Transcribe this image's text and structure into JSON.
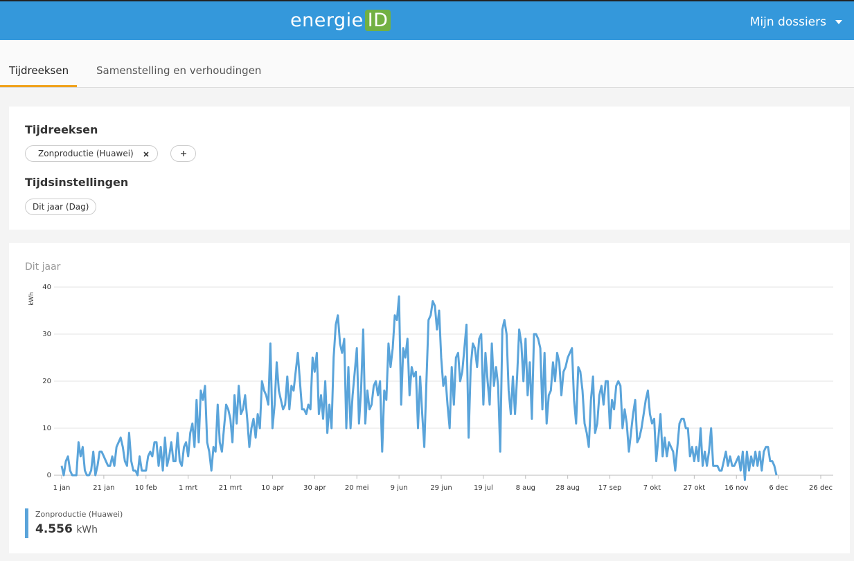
{
  "header": {
    "logo_text": "energie",
    "logo_badge": "ID",
    "menu": "Mijn dossiers"
  },
  "tabs": [
    "Tijdreeksen",
    "Samenstelling en verhoudingen"
  ],
  "series_panel": {
    "title": "Tijdreeksen",
    "chip": "Zonproductie (Huawei)"
  },
  "time_panel": {
    "title": "Tijdsinstellingen",
    "chip": "Dit jaar (Dag)"
  },
  "chart_data": {
    "type": "line",
    "title": "Dit jaar",
    "y_label": "kWh",
    "xlim": [
      0,
      360
    ],
    "xticks": [
      {
        "value": 0,
        "label": "1 jan"
      },
      {
        "value": 20,
        "label": "21 jan"
      },
      {
        "value": 40,
        "label": "10 feb"
      },
      {
        "value": 60,
        "label": "1 mrt"
      },
      {
        "value": 80,
        "label": "21 mrt"
      },
      {
        "value": 100,
        "label": "10 apr"
      },
      {
        "value": 120,
        "label": "30 apr"
      },
      {
        "value": 140,
        "label": "20 mei"
      },
      {
        "value": 160,
        "label": "9 jun"
      },
      {
        "value": 180,
        "label": "29 jun"
      },
      {
        "value": 200,
        "label": "19 jul"
      },
      {
        "value": 220,
        "label": "8 aug"
      },
      {
        "value": 240,
        "label": "28 aug"
      },
      {
        "value": 260,
        "label": "17 sep"
      },
      {
        "value": 280,
        "label": "7 okt"
      },
      {
        "value": 300,
        "label": "27 okt"
      },
      {
        "value": 320,
        "label": "16 nov"
      },
      {
        "value": 340,
        "label": "6 dec"
      },
      {
        "value": 360,
        "label": "26 dec"
      }
    ],
    "ylim": [
      0,
      40
    ],
    "yticks": [
      0,
      10,
      20,
      30,
      40
    ],
    "grid": true,
    "series": [
      {
        "name": "Zonproductie (Huawei)",
        "color": "#5aa4da",
        "values": [
          2,
          0,
          3,
          4,
          1,
          0,
          0,
          0,
          7,
          4,
          6,
          1,
          0,
          0,
          1,
          5,
          0,
          2,
          5,
          5,
          4,
          3,
          2,
          2,
          4,
          2,
          6,
          7,
          8,
          6,
          3,
          2,
          9,
          3,
          1,
          1,
          0,
          4,
          1,
          1,
          1,
          4,
          5,
          4,
          7,
          7,
          2,
          6,
          1,
          8,
          2,
          4,
          7,
          3,
          3,
          9,
          3,
          2,
          6,
          7,
          4,
          9,
          11,
          6,
          16,
          7,
          18,
          16,
          19,
          7,
          5,
          1,
          6,
          5,
          15,
          7,
          5,
          10,
          15,
          14,
          12,
          7,
          17,
          11,
          19,
          13,
          14,
          17,
          12,
          6,
          10,
          12,
          8,
          13,
          10,
          20,
          18,
          17,
          15,
          28,
          10,
          15,
          24,
          18,
          16,
          14,
          15,
          21,
          14,
          19,
          18,
          22,
          26,
          20,
          14,
          14,
          13,
          15,
          14,
          25,
          22,
          26,
          13,
          17,
          12,
          20,
          9,
          15,
          10,
          25,
          32,
          34,
          28,
          26,
          29,
          10,
          23,
          10,
          17,
          22,
          27,
          11,
          18,
          31,
          11,
          18,
          14,
          15,
          19,
          20,
          17,
          20,
          5,
          18,
          16,
          28,
          23,
          27,
          34,
          33,
          38,
          15,
          27,
          25,
          29,
          17,
          23,
          21,
          22,
          10,
          21,
          13,
          6,
          20,
          33,
          34,
          37,
          36,
          31,
          35,
          25,
          19,
          21,
          15,
          10,
          23,
          15,
          25,
          26,
          20,
          22,
          27,
          32,
          8,
          23,
          28,
          27,
          23,
          29,
          30,
          15,
          26,
          20,
          15,
          28,
          19,
          23,
          19,
          5,
          31,
          33,
          30,
          18,
          13,
          21,
          13,
          21,
          31,
          28,
          20,
          29,
          17,
          24,
          12,
          30,
          30,
          29,
          27,
          14,
          26,
          11,
          17,
          18,
          24,
          20,
          26,
          24,
          17,
          22,
          23,
          25,
          26,
          27,
          16,
          11,
          23,
          22,
          18,
          11,
          9,
          6,
          16,
          21,
          9,
          11,
          17,
          19,
          15,
          20,
          20,
          10,
          16,
          14,
          19,
          20,
          19,
          10,
          14,
          11,
          5,
          9,
          13,
          16,
          7,
          8,
          10,
          13,
          16,
          18,
          13,
          11,
          12,
          3,
          8,
          13,
          4,
          8,
          4,
          7,
          6,
          5,
          1,
          6,
          11,
          12,
          12,
          10,
          10,
          4,
          6,
          3,
          6,
          3,
          10,
          2,
          5,
          2,
          5,
          10,
          2,
          2,
          2,
          1,
          1,
          3,
          5,
          2,
          4,
          2,
          2,
          3,
          4,
          1,
          5,
          -1,
          5,
          1,
          4,
          2,
          5,
          2,
          5,
          1,
          5,
          6,
          6,
          3,
          3,
          2,
          0
        ]
      }
    ]
  },
  "summary": {
    "total": "4.556",
    "unit": "kWh"
  }
}
